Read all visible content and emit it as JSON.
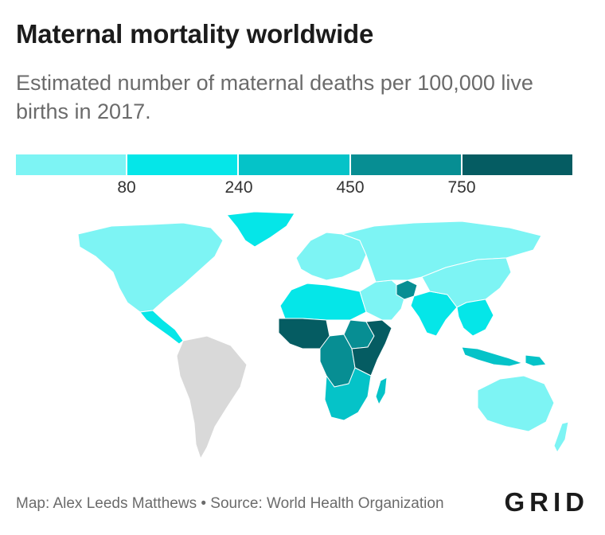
{
  "header": {
    "title": "Maternal mortality worldwide",
    "subtitle": "Estimated number of maternal deaths per 100,000 live births in 2017."
  },
  "legend": {
    "colors": [
      "#7df4f4",
      "#05e6e8",
      "#05c3c8",
      "#078e93",
      "#055c62"
    ],
    "thresholds": [
      "80",
      "240",
      "450",
      "750"
    ]
  },
  "map": {
    "no_data_color": "#d9d9d9",
    "border_color": "#ffffff",
    "regions": [
      {
        "name": "North America",
        "bucket": 0
      },
      {
        "name": "Central America",
        "bucket": 1
      },
      {
        "name": "South America",
        "bucket": 1
      },
      {
        "name": "Greenland",
        "bucket": null
      },
      {
        "name": "Europe",
        "bucket": 0
      },
      {
        "name": "North Africa",
        "bucket": 1
      },
      {
        "name": "West Africa",
        "bucket": 4
      },
      {
        "name": "Central Africa",
        "bucket": 3
      },
      {
        "name": "East Africa",
        "bucket": 3
      },
      {
        "name": "South Sudan",
        "bucket": 4
      },
      {
        "name": "Southern Africa",
        "bucket": 2
      },
      {
        "name": "Madagascar",
        "bucket": 2
      },
      {
        "name": "Middle East",
        "bucket": 0
      },
      {
        "name": "Afghanistan",
        "bucket": 3
      },
      {
        "name": "South Asia",
        "bucket": 1
      },
      {
        "name": "Russia & Central Asia",
        "bucket": 0
      },
      {
        "name": "East Asia",
        "bucket": 0
      },
      {
        "name": "Southeast Asia",
        "bucket": 1
      },
      {
        "name": "Indonesia",
        "bucket": 2
      },
      {
        "name": "Papua New Guinea",
        "bucket": 2
      },
      {
        "name": "Australia",
        "bucket": 0
      },
      {
        "name": "New Zealand",
        "bucket": 0
      }
    ]
  },
  "footer": {
    "credit": "Map: Alex Leeds Matthews • Source: World Health Organization",
    "logo": "GRID"
  }
}
